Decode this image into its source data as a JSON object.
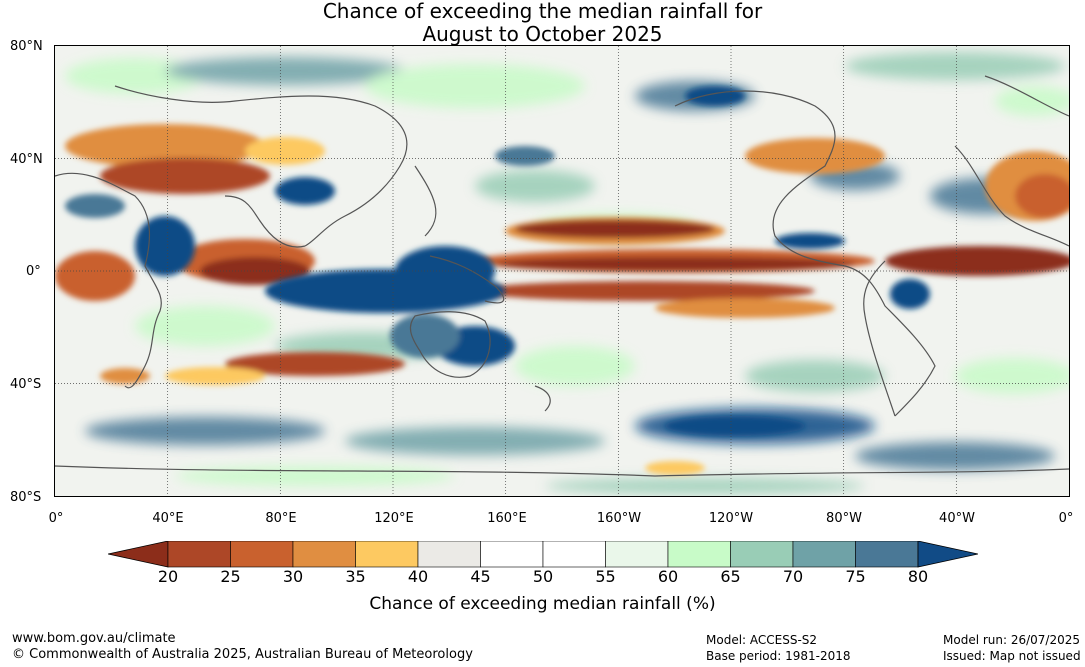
{
  "title": {
    "line1": "Chance of exceeding the median rainfall for",
    "line2": "August to October 2025"
  },
  "map": {
    "lat_labels": [
      "80°N",
      "40°N",
      "0°",
      "40°S",
      "80°S"
    ],
    "lon_labels": [
      "0°",
      "40°E",
      "80°E",
      "120°E",
      "160°E",
      "160°W",
      "120°W",
      "80°W",
      "40°W",
      "0°"
    ]
  },
  "colorbar": {
    "ticks": [
      "20",
      "25",
      "30",
      "35",
      "40",
      "45",
      "50",
      "55",
      "60",
      "65",
      "70",
      "75",
      "80"
    ],
    "colors": [
      "#8c2d1a",
      "#ad4727",
      "#c9612e",
      "#e08e41",
      "#fdc961",
      "#ebeae6",
      "#ffffff",
      "#ffffff",
      "#eaf7ea",
      "#c8fbc8",
      "#99cdb6",
      "#6fa2a7",
      "#4a7896",
      "#114b86"
    ],
    "title": "Chance of exceeding median rainfall (%)"
  },
  "footer": {
    "website": "www.bom.gov.au/climate",
    "copyright": "© Commonwealth of Australia 2025, Australian Bureau of Meteorology",
    "model": "Model: ACCESS-S2",
    "base_period": "Base period: 1981-2018",
    "model_run": "Model run: 26/07/2025",
    "issued": "Issued: Map not issued"
  }
}
